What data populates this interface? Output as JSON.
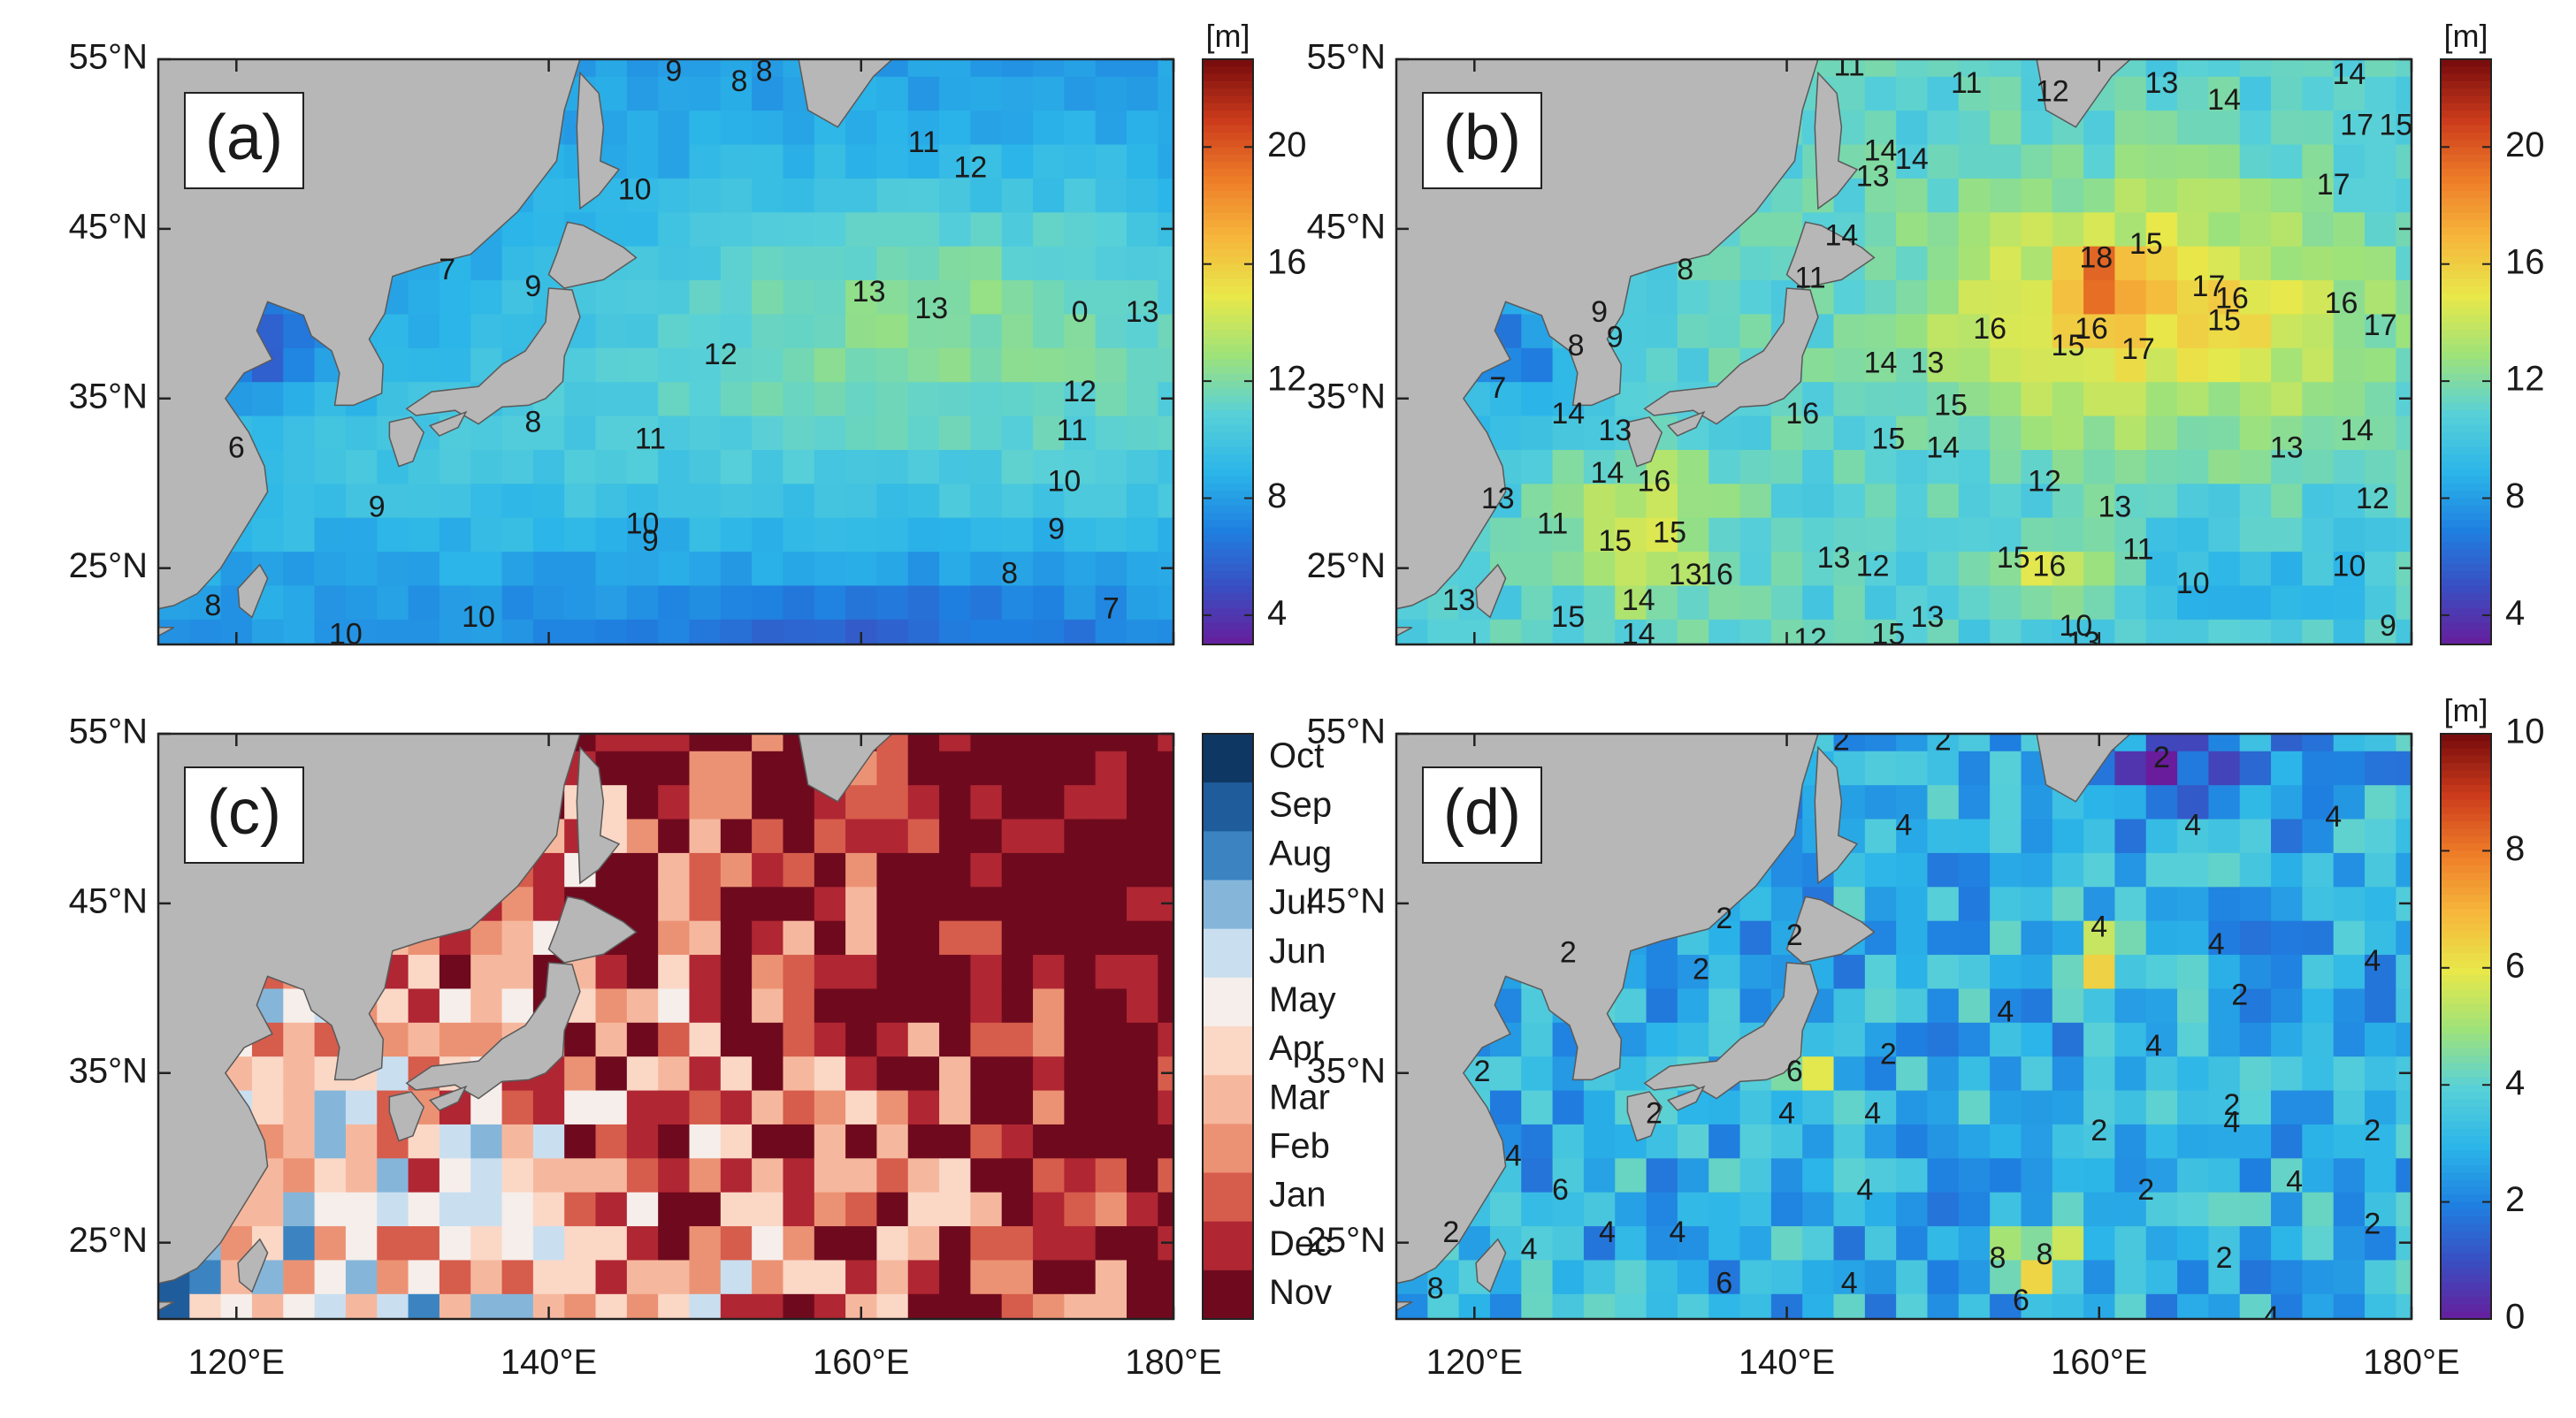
{
  "figure": {
    "axes": {
      "lat_ticks": [
        "55°N",
        "45°N",
        "35°N",
        "25°N"
      ],
      "lon_ticks": [
        "120°E",
        "140°E",
        "160°E",
        "180°E"
      ],
      "lat_values": [
        55,
        45,
        35,
        25
      ],
      "lon_values": [
        120,
        140,
        160,
        180
      ],
      "lat_range": [
        20.5,
        55
      ],
      "lon_range": [
        115,
        180
      ]
    },
    "colors": {
      "land": "#b7b7b7",
      "ocean_default": "#46bdee",
      "contour": "#1e1e1e",
      "jet": [
        "#6a1b9a",
        "#3b4cc0",
        "#1f7fe0",
        "#2bb5e8",
        "#58d0d8",
        "#9ee27a",
        "#e8e84a",
        "#f6b73c",
        "#ee7d28",
        "#cc3c1c",
        "#7a0d0d"
      ],
      "months": [
        "#0e3763",
        "#1f5c9c",
        "#3b84c1",
        "#85b6da",
        "#c9dff0",
        "#f6eeea",
        "#fbd7c6",
        "#f5b89e",
        "#ec9274",
        "#d65c4c",
        "#b02633",
        "#6f0a1e"
      ]
    },
    "panels": [
      {
        "id": "a",
        "label": "(a)",
        "type": "continuous",
        "colorbar": {
          "unit": "[m]",
          "min": 3,
          "max": 23,
          "tick_values": [
            4,
            8,
            12,
            16,
            20
          ],
          "tick_labels": [
            "4",
            "8",
            "12",
            "16",
            "20"
          ]
        },
        "contour_labels": [
          {
            "text": "9",
            "lon": 148,
            "lat": 54.2
          },
          {
            "text": "8",
            "lon": 152.2,
            "lat": 53.6
          },
          {
            "text": "8",
            "lon": 153.8,
            "lat": 54.2
          },
          {
            "text": "7",
            "lon": 133.5,
            "lat": 42.5
          },
          {
            "text": "9",
            "lon": 139,
            "lat": 41.5
          },
          {
            "text": "10",
            "lon": 145.5,
            "lat": 47.2
          },
          {
            "text": "11",
            "lon": 164,
            "lat": 50
          },
          {
            "text": "12",
            "lon": 167,
            "lat": 48.5
          },
          {
            "text": "13",
            "lon": 160.5,
            "lat": 41.2
          },
          {
            "text": "13",
            "lon": 164.5,
            "lat": 40.2
          },
          {
            "text": "0",
            "lon": 174,
            "lat": 40
          },
          {
            "text": "13",
            "lon": 178,
            "lat": 40
          },
          {
            "text": "12",
            "lon": 151,
            "lat": 37.5
          },
          {
            "text": "12",
            "lon": 174,
            "lat": 35.3
          },
          {
            "text": "11",
            "lon": 173.5,
            "lat": 33
          },
          {
            "text": "10",
            "lon": 173,
            "lat": 30
          },
          {
            "text": "9",
            "lon": 172.5,
            "lat": 27.2
          },
          {
            "text": "8",
            "lon": 169.5,
            "lat": 24.6
          },
          {
            "text": "7",
            "lon": 176,
            "lat": 22.5
          },
          {
            "text": "8",
            "lon": 139,
            "lat": 33.5
          },
          {
            "text": "11",
            "lon": 146.5,
            "lat": 32.5
          },
          {
            "text": "10",
            "lon": 146,
            "lat": 27.5
          },
          {
            "text": "9",
            "lon": 146.5,
            "lat": 26.5
          },
          {
            "text": "9",
            "lon": 129,
            "lat": 28.5
          },
          {
            "text": "10",
            "lon": 127,
            "lat": 21
          },
          {
            "text": "10",
            "lon": 135.5,
            "lat": 22
          },
          {
            "text": "8",
            "lon": 118.5,
            "lat": 22.7
          },
          {
            "text": "6",
            "lon": 120,
            "lat": 32
          }
        ]
      },
      {
        "id": "b",
        "label": "(b)",
        "type": "continuous",
        "colorbar": {
          "unit": "[m]",
          "min": 3,
          "max": 23,
          "tick_values": [
            4,
            8,
            12,
            16,
            20
          ],
          "tick_labels": [
            "4",
            "8",
            "12",
            "16",
            "20"
          ]
        },
        "contour_labels": [
          {
            "text": "11",
            "lon": 144,
            "lat": 54.5
          },
          {
            "text": "11",
            "lon": 151.5,
            "lat": 53.5
          },
          {
            "text": "12",
            "lon": 157,
            "lat": 53
          },
          {
            "text": "13",
            "lon": 164,
            "lat": 53.5
          },
          {
            "text": "14",
            "lon": 168,
            "lat": 52.5
          },
          {
            "text": "14",
            "lon": 176,
            "lat": 54
          },
          {
            "text": "17",
            "lon": 176.5,
            "lat": 51
          },
          {
            "text": "15",
            "lon": 179,
            "lat": 51
          },
          {
            "text": "17",
            "lon": 175,
            "lat": 47.5
          },
          {
            "text": "14",
            "lon": 146,
            "lat": 49.5
          },
          {
            "text": "13",
            "lon": 145.5,
            "lat": 48
          },
          {
            "text": "14",
            "lon": 148,
            "lat": 49
          },
          {
            "text": "15",
            "lon": 163,
            "lat": 44
          },
          {
            "text": "18",
            "lon": 159.8,
            "lat": 43.2
          },
          {
            "text": "17",
            "lon": 167,
            "lat": 41.5
          },
          {
            "text": "16",
            "lon": 168.5,
            "lat": 40.8
          },
          {
            "text": "15",
            "lon": 168,
            "lat": 39.5
          },
          {
            "text": "16",
            "lon": 175.5,
            "lat": 40.5
          },
          {
            "text": "17",
            "lon": 178,
            "lat": 39.2
          },
          {
            "text": "16",
            "lon": 153,
            "lat": 39
          },
          {
            "text": "16",
            "lon": 159.5,
            "lat": 39
          },
          {
            "text": "15",
            "lon": 158,
            "lat": 38
          },
          {
            "text": "17",
            "lon": 162.5,
            "lat": 37.8
          },
          {
            "text": "13",
            "lon": 149,
            "lat": 37
          },
          {
            "text": "14",
            "lon": 146,
            "lat": 37
          },
          {
            "text": "15",
            "lon": 150.5,
            "lat": 34.5
          },
          {
            "text": "16",
            "lon": 141,
            "lat": 34
          },
          {
            "text": "15",
            "lon": 146.5,
            "lat": 32.5
          },
          {
            "text": "14",
            "lon": 150,
            "lat": 32
          },
          {
            "text": "13",
            "lon": 172,
            "lat": 32
          },
          {
            "text": "14",
            "lon": 176.5,
            "lat": 33
          },
          {
            "text": "12",
            "lon": 156.5,
            "lat": 30
          },
          {
            "text": "13",
            "lon": 161,
            "lat": 28.5
          },
          {
            "text": "12",
            "lon": 177.5,
            "lat": 29
          },
          {
            "text": "10",
            "lon": 176,
            "lat": 25
          },
          {
            "text": "10",
            "lon": 166,
            "lat": 24
          },
          {
            "text": "11",
            "lon": 162.5,
            "lat": 26
          },
          {
            "text": "15",
            "lon": 154.5,
            "lat": 25.5
          },
          {
            "text": "16",
            "lon": 156.8,
            "lat": 25
          },
          {
            "text": "13",
            "lon": 143,
            "lat": 25.5
          },
          {
            "text": "12",
            "lon": 145.5,
            "lat": 25
          },
          {
            "text": "13",
            "lon": 133.5,
            "lat": 24.5
          },
          {
            "text": "16",
            "lon": 135.5,
            "lat": 24.5
          },
          {
            "text": "15",
            "lon": 129,
            "lat": 26.5
          },
          {
            "text": "15",
            "lon": 132.5,
            "lat": 27
          },
          {
            "text": "16",
            "lon": 131.5,
            "lat": 30
          },
          {
            "text": "14",
            "lon": 128.5,
            "lat": 30.5
          },
          {
            "text": "14",
            "lon": 130.5,
            "lat": 23
          },
          {
            "text": "15",
            "lon": 126,
            "lat": 22
          },
          {
            "text": "14",
            "lon": 130.5,
            "lat": 21
          },
          {
            "text": "12",
            "lon": 141.5,
            "lat": 20.7
          },
          {
            "text": "15",
            "lon": 146.5,
            "lat": 21
          },
          {
            "text": "13",
            "lon": 149,
            "lat": 22
          },
          {
            "text": "10",
            "lon": 158.5,
            "lat": 21.5
          },
          {
            "text": "13",
            "lon": 159,
            "lat": 20.5
          },
          {
            "text": "9",
            "lon": 178.5,
            "lat": 21.5
          },
          {
            "text": "8",
            "lon": 133.5,
            "lat": 42.5
          },
          {
            "text": "9",
            "lon": 129,
            "lat": 38.5
          },
          {
            "text": "9",
            "lon": 128,
            "lat": 40
          },
          {
            "text": "8",
            "lon": 126.5,
            "lat": 38
          },
          {
            "text": "11",
            "lon": 141.5,
            "lat": 42
          },
          {
            "text": "14",
            "lon": 143.5,
            "lat": 44.5
          },
          {
            "text": "7",
            "lon": 121.5,
            "lat": 35.5
          },
          {
            "text": "13",
            "lon": 129,
            "lat": 33
          },
          {
            "text": "14",
            "lon": 126,
            "lat": 34
          },
          {
            "text": "13",
            "lon": 121.5,
            "lat": 29
          },
          {
            "text": "11",
            "lon": 125,
            "lat": 27.5
          },
          {
            "text": "13",
            "lon": 119,
            "lat": 23
          }
        ]
      },
      {
        "id": "c",
        "label": "(c)",
        "type": "months",
        "colorbar": {
          "unit": "",
          "tick_labels": [
            "Oct",
            "Sep",
            "Aug",
            "Jul",
            "Jun",
            "May",
            "Apr",
            "Mar",
            "Feb",
            "Jan",
            "Dec",
            "Nov"
          ]
        },
        "contour_labels": []
      },
      {
        "id": "d",
        "label": "(d)",
        "type": "continuous",
        "colorbar": {
          "unit": "[m]",
          "min": 0,
          "max": 10,
          "tick_values": [
            0,
            2,
            4,
            6,
            8,
            10
          ],
          "tick_labels": [
            "0",
            "2",
            "4",
            "6",
            "8",
            "10"
          ]
        },
        "contour_labels": [
          {
            "text": "2",
            "lon": 143.5,
            "lat": 54.5
          },
          {
            "text": "2",
            "lon": 150,
            "lat": 54.5
          },
          {
            "text": "2",
            "lon": 164,
            "lat": 53.5
          },
          {
            "text": "4",
            "lon": 147.5,
            "lat": 49.5
          },
          {
            "text": "4",
            "lon": 166,
            "lat": 49.5
          },
          {
            "text": "4",
            "lon": 175,
            "lat": 50
          },
          {
            "text": "2",
            "lon": 136,
            "lat": 44
          },
          {
            "text": "2",
            "lon": 140.5,
            "lat": 43
          },
          {
            "text": "2",
            "lon": 134.5,
            "lat": 41
          },
          {
            "text": "2",
            "lon": 126,
            "lat": 42
          },
          {
            "text": "4",
            "lon": 160,
            "lat": 43.5
          },
          {
            "text": "4",
            "lon": 167.5,
            "lat": 42.5
          },
          {
            "text": "4",
            "lon": 177.5,
            "lat": 41.5
          },
          {
            "text": "2",
            "lon": 169,
            "lat": 39.5
          },
          {
            "text": "4",
            "lon": 154,
            "lat": 38.5
          },
          {
            "text": "2",
            "lon": 146.5,
            "lat": 36
          },
          {
            "text": "4",
            "lon": 163.5,
            "lat": 36.5
          },
          {
            "text": "2",
            "lon": 120.5,
            "lat": 35
          },
          {
            "text": "6",
            "lon": 140.5,
            "lat": 35
          },
          {
            "text": "4",
            "lon": 140,
            "lat": 32.5
          },
          {
            "text": "2",
            "lon": 131.5,
            "lat": 32.5
          },
          {
            "text": "4",
            "lon": 145.5,
            "lat": 32.5
          },
          {
            "text": "2",
            "lon": 160,
            "lat": 31.5
          },
          {
            "text": "4",
            "lon": 168.5,
            "lat": 32
          },
          {
            "text": "2",
            "lon": 168.5,
            "lat": 33
          },
          {
            "text": "2",
            "lon": 177.5,
            "lat": 31.5
          },
          {
            "text": "4",
            "lon": 122.5,
            "lat": 30
          },
          {
            "text": "6",
            "lon": 125.5,
            "lat": 28
          },
          {
            "text": "4",
            "lon": 145,
            "lat": 28
          },
          {
            "text": "2",
            "lon": 163,
            "lat": 28
          },
          {
            "text": "4",
            "lon": 172.5,
            "lat": 28.5
          },
          {
            "text": "4",
            "lon": 128.5,
            "lat": 25.5
          },
          {
            "text": "4",
            "lon": 133,
            "lat": 25.5
          },
          {
            "text": "2",
            "lon": 177.5,
            "lat": 26
          },
          {
            "text": "6",
            "lon": 136,
            "lat": 22.5
          },
          {
            "text": "4",
            "lon": 144,
            "lat": 22.5
          },
          {
            "text": "8",
            "lon": 153.5,
            "lat": 24
          },
          {
            "text": "8",
            "lon": 156.5,
            "lat": 24.2
          },
          {
            "text": "2",
            "lon": 168,
            "lat": 24
          },
          {
            "text": "6",
            "lon": 155,
            "lat": 21.5
          },
          {
            "text": "4",
            "lon": 171,
            "lat": 20.5
          },
          {
            "text": "8",
            "lon": 117.5,
            "lat": 22.2
          },
          {
            "text": "4",
            "lon": 123.5,
            "lat": 24.5
          },
          {
            "text": "2",
            "lon": 118.5,
            "lat": 25.5
          }
        ]
      }
    ]
  }
}
